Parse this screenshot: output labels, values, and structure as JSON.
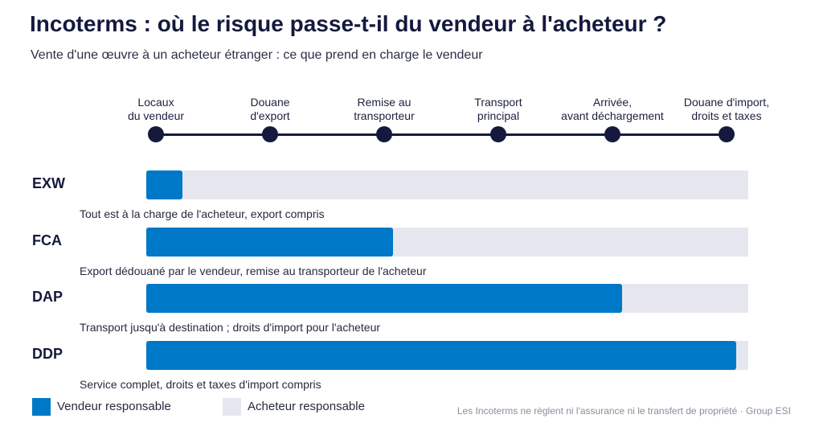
{
  "title": "Incoterms : où le risque passe-t-il du vendeur à l'acheteur ?",
  "subtitle": "Vente d'une œuvre à un acheteur étranger : ce que prend en charge le vendeur",
  "stages": [
    {
      "label": "Locaux\ndu vendeur"
    },
    {
      "label": "Douane\nd'export"
    },
    {
      "label": "Remise au\ntransporteur"
    },
    {
      "label": "Transport\nprincipal"
    },
    {
      "label": "Arrivée,\navant déchargement"
    },
    {
      "label": "Douane d'import,\ndroits et taxes"
    }
  ],
  "terms": [
    {
      "code": "EXW",
      "seller_share": 0.06,
      "description": "Tout est à la charge de l'acheteur, export compris"
    },
    {
      "code": "FCA",
      "seller_share": 0.41,
      "description": "Export dédouané par le vendeur, remise au transporteur de l'acheteur"
    },
    {
      "code": "DAP",
      "seller_share": 0.79,
      "description": "Transport jusqu'à destination ; droits d'import pour l'acheteur"
    },
    {
      "code": "DDP",
      "seller_share": 0.98,
      "description": "Service complet, droits et taxes d'import compris"
    }
  ],
  "legend": {
    "seller": {
      "label": "Vendeur responsable",
      "color": "#0078c8"
    },
    "buyer": {
      "label": "Acheteur responsable",
      "color": "#e6e7ee"
    }
  },
  "source_note": "Les Incoterms ne règlent ni l'assurance ni le transfert de propriété · Group ESI"
}
